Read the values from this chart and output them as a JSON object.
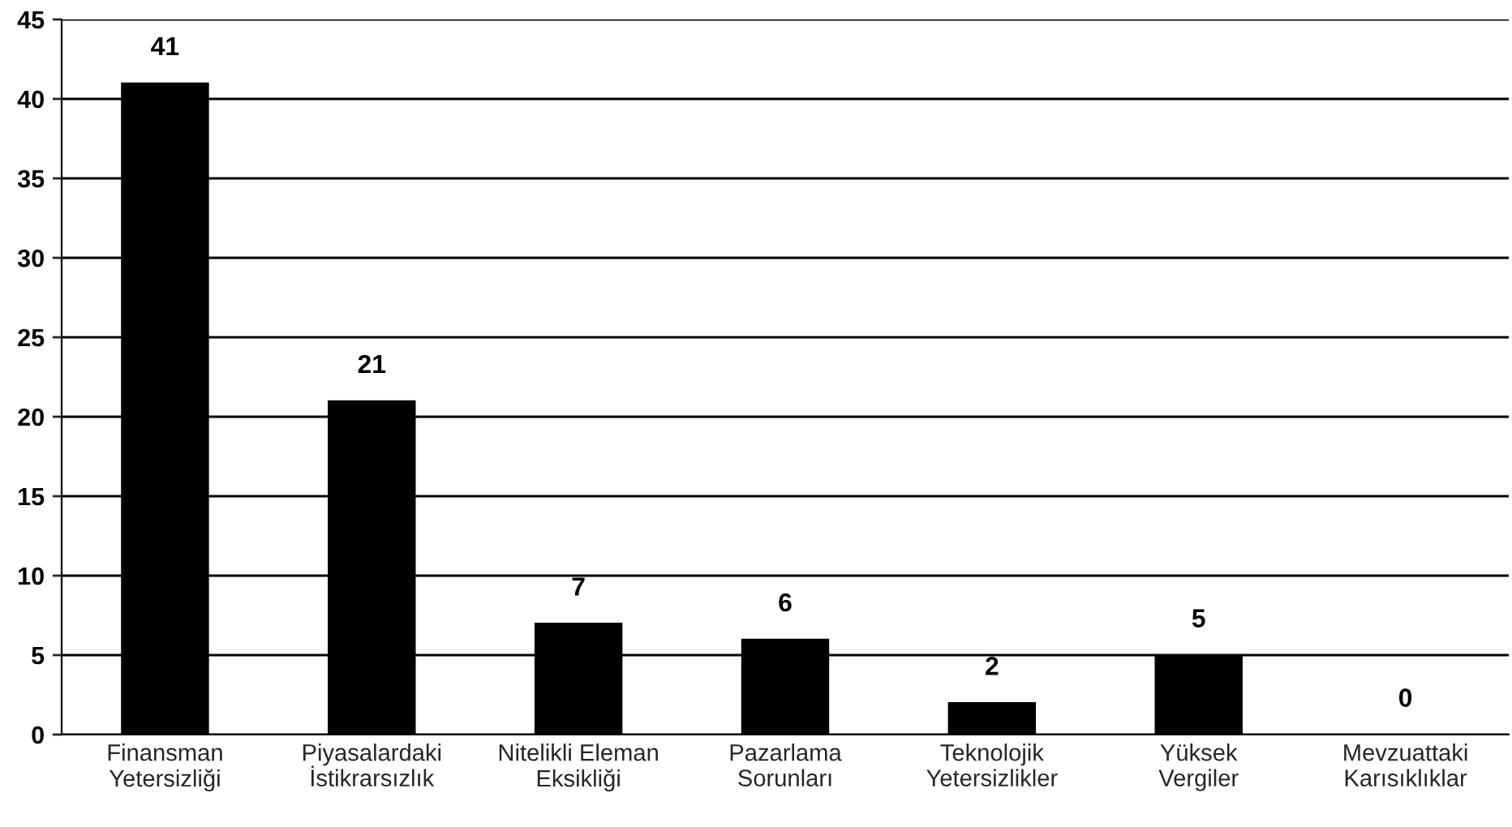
{
  "chart_data": {
    "type": "bar",
    "categories": [
      "Finansman\nYetersizliği",
      "Piyasalardaki\nİstikrarsızlık",
      "Nitelikli Eleman\nEksikliği",
      "Pazarlama\nSorunları",
      "Teknolojik\nYetersizlikler",
      "Yüksek\nVergiler",
      "Mevzuattaki\nKarısıklıklar"
    ],
    "values": [
      41,
      21,
      7,
      6,
      2,
      5,
      0
    ],
    "color": "#000000",
    "ylim": [
      0,
      45
    ],
    "yticks": [
      0,
      5,
      10,
      15,
      20,
      25,
      30,
      35,
      40,
      45
    ],
    "grid": "y",
    "data_labels": true
  }
}
